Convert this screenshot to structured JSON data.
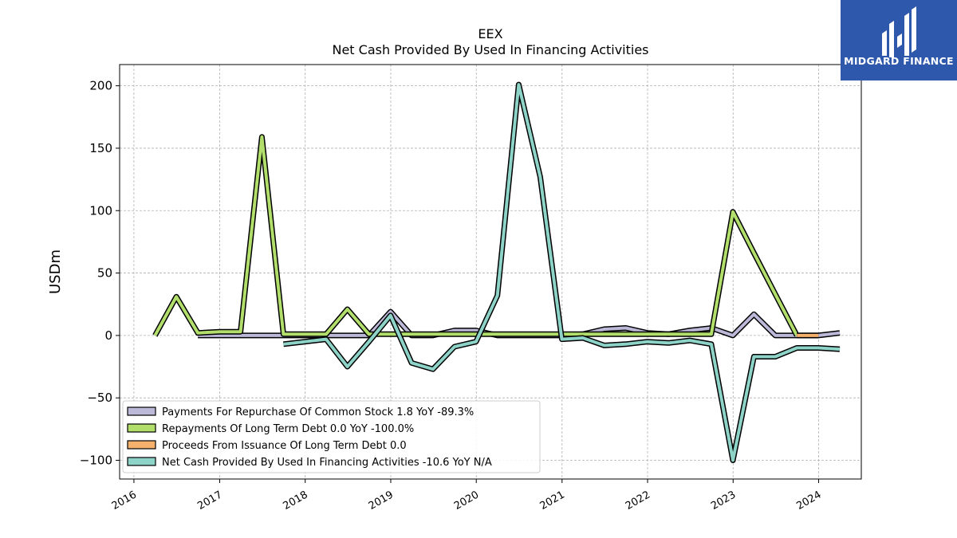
{
  "brand": {
    "name": "MIDGARD FINANCE",
    "bg_color": "#2d58ac"
  },
  "chart_data": {
    "type": "line",
    "title": "EEX",
    "subtitle": "Net Cash Provided By Used In Financing Activities",
    "ylabel": "USDm",
    "xlabel": "",
    "ylim": [
      -115,
      217
    ],
    "xlim": [
      "2015-11-01",
      "2024-07-01"
    ],
    "yticks": [
      200,
      150,
      100,
      50,
      0,
      -50,
      -100
    ],
    "ytick_labels": [
      "200",
      "150",
      "100",
      "50",
      "0",
      "−50",
      "−100"
    ],
    "xticks": [
      "2016-01-01",
      "2017-01-01",
      "2018-01-01",
      "2019-01-01",
      "2020-01-01",
      "2021-01-01",
      "2022-01-01",
      "2023-01-01",
      "2024-01-01"
    ],
    "xtick_labels": [
      "2016",
      "2017",
      "2018",
      "2019",
      "2020",
      "2021",
      "2022",
      "2023",
      "2024"
    ],
    "grid": true,
    "legend_position": "lower-left",
    "series": [
      {
        "name": "Payments For Repurchase Of Common Stock",
        "legend_label": "Payments For Repurchase Of Common Stock  1.8 YoY -89.3%",
        "color": "#bcb8d8",
        "x": [
          "2016-09-30",
          "2016-12-31",
          "2017-03-31",
          "2017-06-30",
          "2017-09-30",
          "2017-12-31",
          "2018-03-31",
          "2018-06-30",
          "2018-09-30",
          "2018-12-31",
          "2019-03-31",
          "2019-06-30",
          "2019-09-30",
          "2019-12-31",
          "2020-03-31",
          "2020-06-30",
          "2020-09-30",
          "2020-12-31",
          "2021-03-31",
          "2021-06-30",
          "2021-09-30",
          "2021-12-31",
          "2022-03-31",
          "2022-06-30",
          "2022-09-30",
          "2022-12-31",
          "2023-03-31",
          "2023-06-30",
          "2023-09-30",
          "2023-12-31",
          "2024-03-31"
        ],
        "values": [
          0,
          0,
          0,
          0,
          0,
          0,
          0,
          0,
          0,
          19,
          0,
          0,
          4,
          4,
          0,
          0,
          0,
          0,
          1,
          5,
          6,
          2,
          1,
          4,
          6,
          0,
          17,
          0,
          0,
          0,
          2
        ]
      },
      {
        "name": "Repayments Of Long Term Debt",
        "legend_label": "Repayments Of Long Term Debt  0.0 YoY -100.0%",
        "color": "#b2df6b",
        "x": [
          "2016-03-31",
          "2016-06-30",
          "2016-09-30",
          "2016-12-31",
          "2017-03-31",
          "2017-06-30",
          "2017-09-30",
          "2017-12-31",
          "2018-03-31",
          "2018-06-30",
          "2018-09-30",
          "2018-12-31",
          "2019-03-31",
          "2019-06-30",
          "2019-09-30",
          "2019-12-31",
          "2020-03-31",
          "2020-06-30",
          "2020-09-30",
          "2020-12-31",
          "2021-03-31",
          "2021-06-30",
          "2021-09-30",
          "2021-12-31",
          "2022-03-31",
          "2022-06-30",
          "2022-09-30",
          "2022-12-31",
          "2023-03-31",
          "2023-06-30",
          "2023-09-30"
        ],
        "values": [
          0,
          31,
          2,
          3,
          3,
          159,
          1,
          1,
          1,
          21,
          1,
          1,
          1,
          1,
          1,
          1,
          1,
          1,
          1,
          1,
          1,
          1,
          1,
          1,
          1,
          1,
          1,
          99,
          66,
          33,
          0
        ]
      },
      {
        "name": "Proceeds From Issuance Of Long Term Debt",
        "legend_label": "Proceeds From Issuance Of Long Term Debt  0.0",
        "color": "#f6b16c",
        "x": [
          "2023-09-30",
          "2023-12-31"
        ],
        "values": [
          0,
          0
        ]
      },
      {
        "name": "Net Cash Provided By Used In Financing Activities",
        "legend_label": "Net Cash Provided By Used In Financing Activities  -10.6 YoY N/A",
        "color": "#8dd3c7",
        "x": [
          "2017-09-30",
          "2017-12-31",
          "2018-03-31",
          "2018-06-30",
          "2018-09-30",
          "2018-12-31",
          "2019-03-31",
          "2019-06-30",
          "2019-09-30",
          "2019-12-31",
          "2020-03-31",
          "2020-06-30",
          "2020-09-30",
          "2020-12-31",
          "2021-03-31",
          "2021-06-30",
          "2021-09-30",
          "2021-12-31",
          "2022-03-31",
          "2022-06-30",
          "2022-09-30",
          "2022-12-31",
          "2023-03-31",
          "2023-06-30",
          "2023-09-30",
          "2023-12-31",
          "2024-03-31"
        ],
        "values": [
          -7,
          -5,
          -3,
          -25,
          -5,
          16,
          -22,
          -27,
          -9,
          -5,
          32,
          201,
          127,
          -3,
          -2,
          -8,
          -7,
          -5,
          -6,
          -4,
          -7,
          -100,
          -17,
          -17,
          -10,
          -10,
          -11
        ]
      }
    ]
  }
}
